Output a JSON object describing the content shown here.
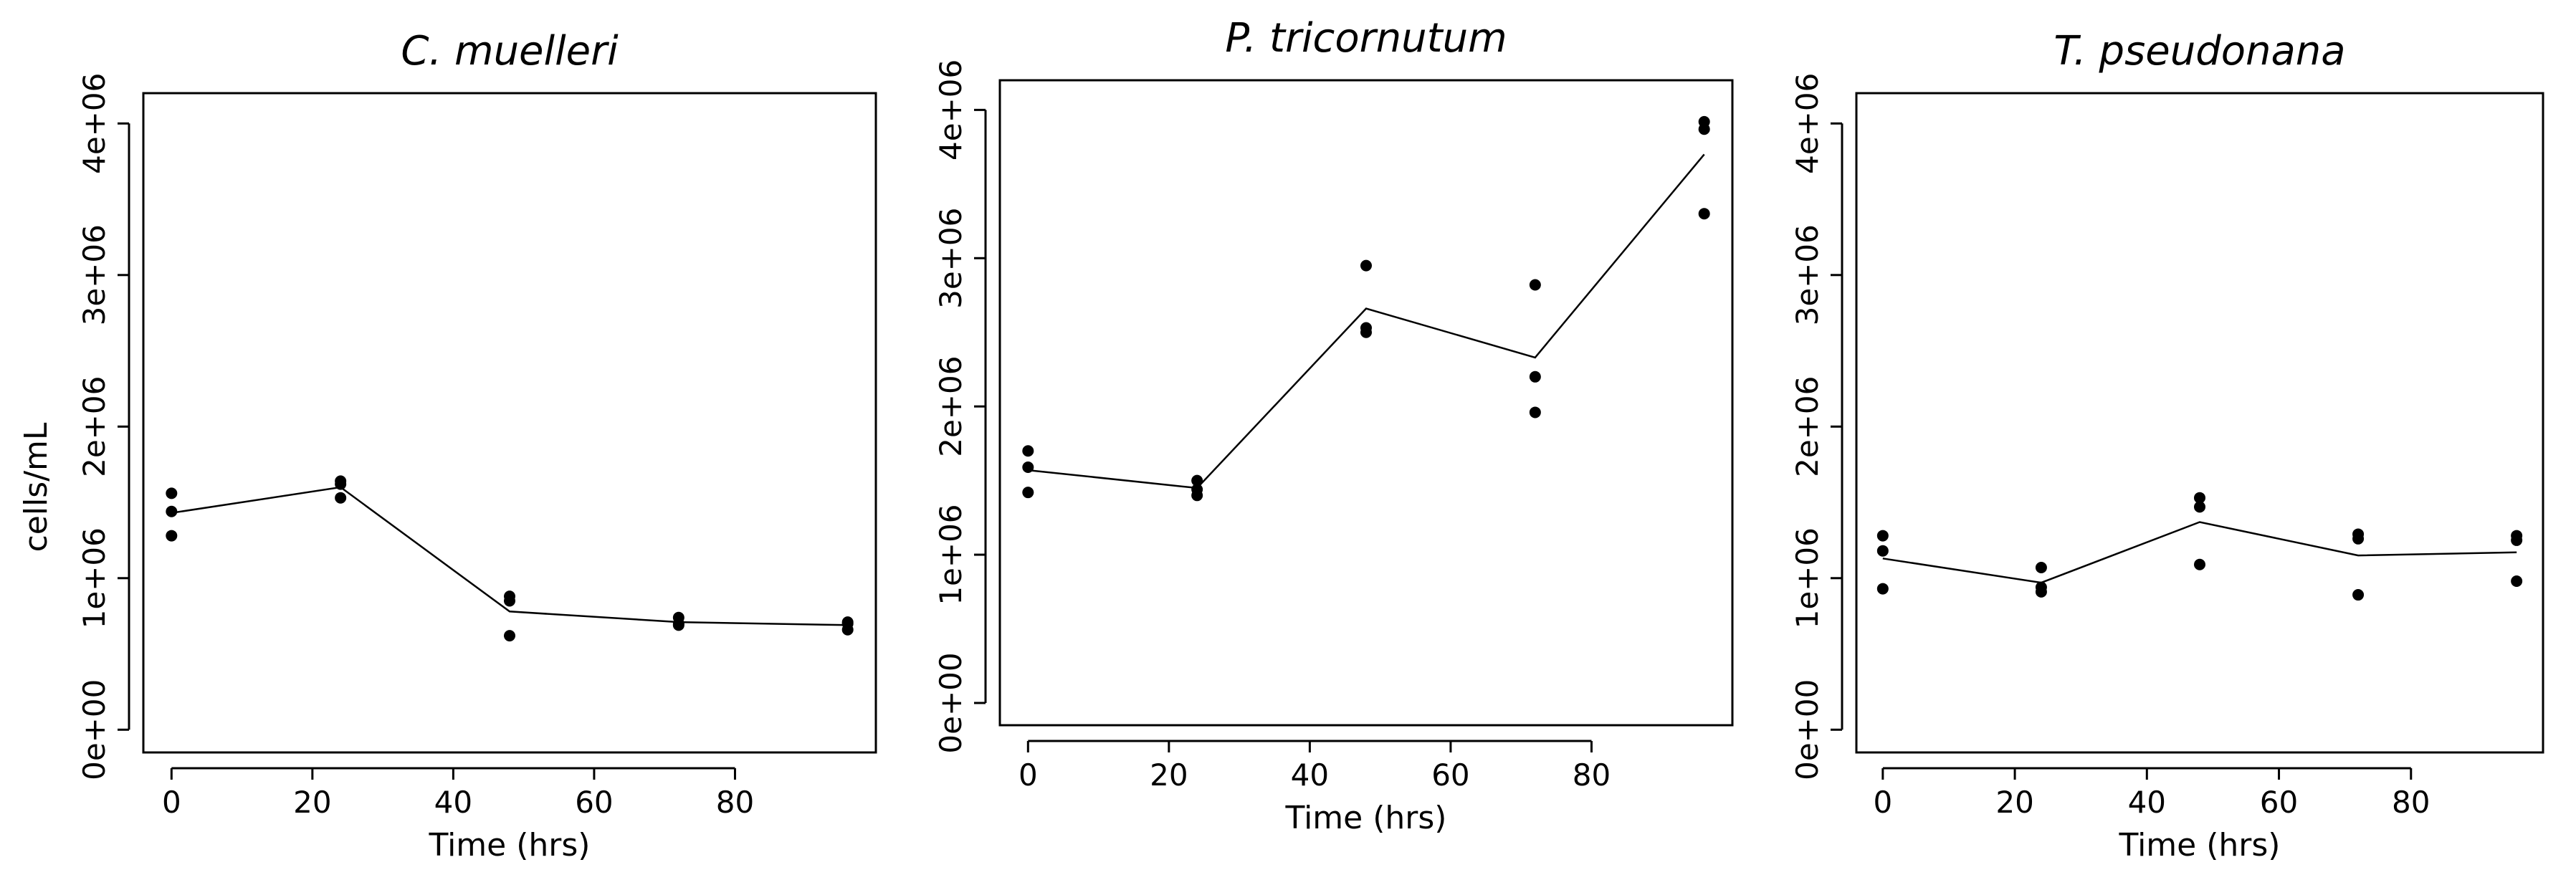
{
  "figure": {
    "y_axis_title": "cells/mL"
  },
  "chart_data": [
    {
      "type": "scatter",
      "title": "C. muelleri",
      "xlabel": "Time (hrs)",
      "ylabel": "cells/mL",
      "xlim": [
        -4,
        100
      ],
      "ylim": [
        -150000,
        4200000
      ],
      "x_ticks": [
        0,
        20,
        40,
        60,
        80
      ],
      "x_tick_labels": [
        "0",
        "20",
        "40",
        "60",
        "80"
      ],
      "y_ticks": [
        0,
        1000000,
        2000000,
        3000000,
        4000000
      ],
      "y_tick_labels": [
        "0e+00",
        "1e+06",
        "2e+06",
        "3e+06",
        "4e+06"
      ],
      "points": [
        {
          "x": 0,
          "y": 1560000
        },
        {
          "x": 0,
          "y": 1440000
        },
        {
          "x": 0,
          "y": 1280000
        },
        {
          "x": 24,
          "y": 1640000
        },
        {
          "x": 24,
          "y": 1620000
        },
        {
          "x": 24,
          "y": 1530000
        },
        {
          "x": 48,
          "y": 880000
        },
        {
          "x": 48,
          "y": 850000
        },
        {
          "x": 48,
          "y": 620000
        },
        {
          "x": 72,
          "y": 740000
        },
        {
          "x": 72,
          "y": 700000
        },
        {
          "x": 72,
          "y": 690000
        },
        {
          "x": 96,
          "y": 710000
        },
        {
          "x": 96,
          "y": 700000
        },
        {
          "x": 96,
          "y": 660000
        }
      ],
      "mean_line": {
        "x": [
          0,
          24,
          48,
          72,
          96
        ],
        "y": [
          1430000,
          1600000,
          780000,
          710000,
          690000
        ]
      }
    },
    {
      "type": "scatter",
      "title": "P. tricornutum",
      "xlabel": "Time (hrs)",
      "ylabel": "",
      "xlim": [
        -4,
        100
      ],
      "ylim": [
        -150000,
        4200000
      ],
      "x_ticks": [
        0,
        20,
        40,
        60,
        80
      ],
      "x_tick_labels": [
        "0",
        "20",
        "40",
        "60",
        "80"
      ],
      "y_ticks": [
        0,
        1000000,
        2000000,
        3000000,
        4000000
      ],
      "y_tick_labels": [
        "0e+00",
        "1e+06",
        "2e+06",
        "3e+06",
        "4e+06"
      ],
      "points": [
        {
          "x": 0,
          "y": 1700000
        },
        {
          "x": 0,
          "y": 1590000
        },
        {
          "x": 0,
          "y": 1420000
        },
        {
          "x": 24,
          "y": 1500000
        },
        {
          "x": 24,
          "y": 1440000
        },
        {
          "x": 24,
          "y": 1400000
        },
        {
          "x": 48,
          "y": 2950000
        },
        {
          "x": 48,
          "y": 2530000
        },
        {
          "x": 48,
          "y": 2500000
        },
        {
          "x": 72,
          "y": 2820000
        },
        {
          "x": 72,
          "y": 2200000
        },
        {
          "x": 72,
          "y": 1960000
        },
        {
          "x": 96,
          "y": 3920000
        },
        {
          "x": 96,
          "y": 3870000
        },
        {
          "x": 96,
          "y": 3300000
        }
      ],
      "mean_line": {
        "x": [
          0,
          24,
          48,
          72,
          96
        ],
        "y": [
          1570000,
          1450000,
          2660000,
          2330000,
          3700000
        ]
      }
    },
    {
      "type": "scatter",
      "title": "T. pseudonana",
      "xlabel": "Time (hrs)",
      "ylabel": "",
      "xlim": [
        -4,
        100
      ],
      "ylim": [
        -150000,
        4200000
      ],
      "x_ticks": [
        0,
        20,
        40,
        60,
        80
      ],
      "x_tick_labels": [
        "0",
        "20",
        "40",
        "60",
        "80"
      ],
      "y_ticks": [
        0,
        1000000,
        2000000,
        3000000,
        4000000
      ],
      "y_tick_labels": [
        "0e+00",
        "1e+06",
        "2e+06",
        "3e+06",
        "4e+06"
      ],
      "points": [
        {
          "x": 0,
          "y": 1280000
        },
        {
          "x": 0,
          "y": 1180000
        },
        {
          "x": 0,
          "y": 930000
        },
        {
          "x": 24,
          "y": 1070000
        },
        {
          "x": 24,
          "y": 940000
        },
        {
          "x": 24,
          "y": 910000
        },
        {
          "x": 48,
          "y": 1530000
        },
        {
          "x": 48,
          "y": 1470000
        },
        {
          "x": 48,
          "y": 1090000
        },
        {
          "x": 72,
          "y": 1290000
        },
        {
          "x": 72,
          "y": 1260000
        },
        {
          "x": 72,
          "y": 890000
        },
        {
          "x": 96,
          "y": 1280000
        },
        {
          "x": 96,
          "y": 1250000
        },
        {
          "x": 96,
          "y": 980000
        }
      ],
      "mean_line": {
        "x": [
          0,
          24,
          48,
          72,
          96
        ],
        "y": [
          1130000,
          970000,
          1370000,
          1150000,
          1170000
        ]
      }
    }
  ]
}
